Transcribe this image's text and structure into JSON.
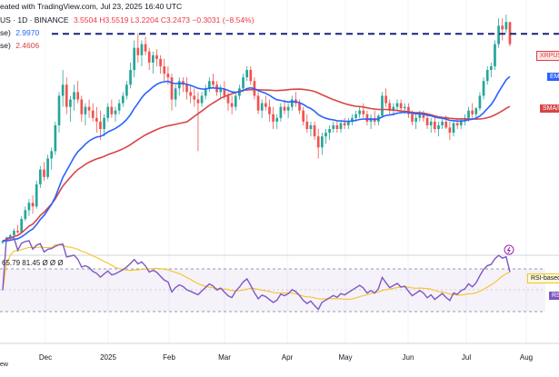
{
  "header": {
    "line1": "eated with TradingView.com, Jul 23, 2025 16:40 UTC",
    "line2_prefix": "US · 1D · BINANCE",
    "ohlc": "3.5504  H3.5519  L3.2204  C3.2473  −0.3031 (−8.54%)",
    "line3_prefix": "se)",
    "ema_value": "2.9970",
    "line4_prefix": "se)",
    "sma_value": "2.4606"
  },
  "price_tags": {
    "symbol": "XRPUSDT",
    "ema": "EMA",
    "sma": "SMA/MA"
  },
  "rsi": {
    "values_text": "65.79  81.45  Ø  Ø  Ø",
    "ma_label": "RSI-based M",
    "rsi_tag": "RS"
  },
  "x_axis": {
    "labels": [
      "Dec",
      "2025",
      "Feb",
      "Mar",
      "Apr",
      "May",
      "Jun",
      "Jul",
      "Aug"
    ],
    "footer": "ew"
  },
  "colors": {
    "up": "#26a69a",
    "down": "#ef5350",
    "ema": "#2962ff",
    "sma": "#d84545",
    "rsi": "#7e57c2",
    "resistance": "#1a237e"
  },
  "chart_data": {
    "type": "candlestick",
    "symbol": "XRPUSDT",
    "timeframe": "1D",
    "exchange": "BINANCE",
    "resistance_line": 3.39,
    "candles": [
      [
        0.56,
        0.6,
        0.54,
        0.58
      ],
      [
        0.58,
        0.64,
        0.56,
        0.62
      ],
      [
        0.62,
        0.68,
        0.6,
        0.66
      ],
      [
        0.66,
        0.75,
        0.64,
        0.72
      ],
      [
        0.72,
        0.8,
        0.68,
        0.7
      ],
      [
        0.7,
        0.92,
        0.68,
        0.88
      ],
      [
        0.88,
        1.05,
        0.85,
        1.0
      ],
      [
        1.0,
        1.15,
        0.92,
        1.1
      ],
      [
        1.1,
        1.2,
        0.95,
        1.05
      ],
      [
        1.05,
        1.4,
        1.02,
        1.35
      ],
      [
        1.35,
        1.6,
        1.3,
        1.55
      ],
      [
        1.55,
        1.65,
        1.4,
        1.45
      ],
      [
        1.45,
        1.75,
        1.42,
        1.7
      ],
      [
        1.7,
        1.85,
        1.55,
        1.8
      ],
      [
        1.8,
        2.2,
        1.75,
        2.15
      ],
      [
        2.15,
        2.6,
        2.05,
        2.55
      ],
      [
        2.55,
        2.9,
        2.4,
        2.7
      ],
      [
        2.7,
        2.8,
        2.3,
        2.4
      ],
      [
        2.4,
        2.55,
        2.2,
        2.5
      ],
      [
        2.5,
        2.7,
        2.35,
        2.6
      ],
      [
        2.6,
        2.75,
        2.45,
        2.5
      ],
      [
        2.5,
        2.55,
        2.2,
        2.3
      ],
      [
        2.3,
        2.45,
        2.15,
        2.4
      ],
      [
        2.4,
        2.5,
        2.25,
        2.35
      ],
      [
        2.35,
        2.45,
        2.2,
        2.25
      ],
      [
        2.25,
        2.4,
        2.05,
        2.2
      ],
      [
        2.2,
        2.35,
        1.95,
        2.1
      ],
      [
        2.1,
        2.3,
        2.0,
        2.25
      ],
      [
        2.25,
        2.45,
        2.2,
        2.4
      ],
      [
        2.4,
        2.5,
        2.25,
        2.3
      ],
      [
        2.3,
        2.4,
        2.2,
        2.35
      ],
      [
        2.35,
        2.5,
        2.3,
        2.45
      ],
      [
        2.45,
        2.6,
        2.4,
        2.55
      ],
      [
        2.55,
        2.75,
        2.5,
        2.7
      ],
      [
        2.7,
        3.0,
        2.65,
        2.9
      ],
      [
        2.9,
        3.3,
        2.8,
        3.2
      ],
      [
        3.2,
        3.4,
        3.0,
        3.1
      ],
      [
        3.1,
        3.3,
        2.95,
        3.25
      ],
      [
        3.25,
        3.35,
        3.1,
        3.15
      ],
      [
        3.15,
        3.2,
        2.9,
        3.0
      ],
      [
        3.0,
        3.15,
        2.85,
        3.1
      ],
      [
        3.1,
        3.18,
        2.95,
        3.05
      ],
      [
        3.05,
        3.1,
        2.85,
        2.95
      ],
      [
        2.95,
        3.05,
        2.75,
        2.85
      ],
      [
        2.85,
        2.95,
        2.7,
        2.8
      ],
      [
        2.8,
        2.85,
        2.35,
        2.5
      ],
      [
        2.5,
        2.7,
        2.4,
        2.65
      ],
      [
        2.65,
        2.8,
        2.55,
        2.75
      ],
      [
        2.75,
        2.8,
        2.6,
        2.7
      ],
      [
        2.7,
        2.8,
        2.5,
        2.6
      ],
      [
        2.6,
        2.7,
        2.45,
        2.55
      ],
      [
        2.55,
        2.65,
        2.4,
        2.5
      ],
      [
        2.5,
        2.6,
        1.8,
        2.45
      ],
      [
        2.45,
        2.6,
        2.4,
        2.55
      ],
      [
        2.55,
        2.7,
        2.5,
        2.65
      ],
      [
        2.65,
        2.8,
        2.6,
        2.75
      ],
      [
        2.75,
        2.85,
        2.65,
        2.7
      ],
      [
        2.7,
        2.75,
        2.55,
        2.6
      ],
      [
        2.6,
        2.7,
        2.5,
        2.65
      ],
      [
        2.65,
        2.75,
        2.5,
        2.55
      ],
      [
        2.55,
        2.6,
        2.35,
        2.45
      ],
      [
        2.45,
        2.55,
        2.3,
        2.4
      ],
      [
        2.4,
        2.6,
        2.35,
        2.55
      ],
      [
        2.55,
        2.7,
        2.5,
        2.65
      ],
      [
        2.65,
        2.85,
        2.6,
        2.8
      ],
      [
        2.8,
        2.95,
        2.75,
        2.9
      ],
      [
        2.9,
        2.95,
        2.7,
        2.75
      ],
      [
        2.75,
        2.8,
        2.5,
        2.55
      ],
      [
        2.55,
        2.6,
        2.3,
        2.35
      ],
      [
        2.35,
        2.5,
        2.25,
        2.45
      ],
      [
        2.45,
        2.55,
        2.35,
        2.4
      ],
      [
        2.4,
        2.5,
        2.2,
        2.3
      ],
      [
        2.3,
        2.4,
        2.1,
        2.2
      ],
      [
        2.2,
        2.3,
        2.1,
        2.25
      ],
      [
        2.25,
        2.45,
        2.2,
        2.4
      ],
      [
        2.4,
        2.5,
        2.3,
        2.35
      ],
      [
        2.35,
        2.45,
        2.25,
        2.4
      ],
      [
        2.4,
        2.55,
        2.35,
        2.5
      ],
      [
        2.5,
        2.6,
        2.4,
        2.45
      ],
      [
        2.45,
        2.5,
        2.3,
        2.35
      ],
      [
        2.35,
        2.4,
        2.15,
        2.2
      ],
      [
        2.2,
        2.3,
        2.05,
        2.1
      ],
      [
        2.1,
        2.2,
        2.0,
        2.15
      ],
      [
        2.15,
        2.2,
        1.95,
        2.0
      ],
      [
        2.0,
        2.1,
        1.7,
        1.85
      ],
      [
        1.85,
        2.05,
        1.75,
        2.0
      ],
      [
        2.0,
        2.1,
        1.9,
        2.05
      ],
      [
        2.05,
        2.15,
        1.95,
        2.1
      ],
      [
        2.1,
        2.2,
        2.05,
        2.15
      ],
      [
        2.15,
        2.2,
        2.05,
        2.1
      ],
      [
        2.1,
        2.2,
        2.05,
        2.18
      ],
      [
        2.18,
        2.25,
        2.1,
        2.15
      ],
      [
        2.15,
        2.25,
        2.1,
        2.2
      ],
      [
        2.2,
        2.3,
        2.15,
        2.25
      ],
      [
        2.25,
        2.35,
        2.2,
        2.3
      ],
      [
        2.3,
        2.4,
        2.25,
        2.35
      ],
      [
        2.35,
        2.45,
        2.25,
        2.3
      ],
      [
        2.3,
        2.35,
        2.15,
        2.2
      ],
      [
        2.2,
        2.3,
        2.1,
        2.25
      ],
      [
        2.25,
        2.35,
        2.15,
        2.2
      ],
      [
        2.2,
        2.3,
        2.15,
        2.28
      ],
      [
        2.28,
        2.6,
        2.25,
        2.55
      ],
      [
        2.55,
        2.65,
        2.4,
        2.45
      ],
      [
        2.45,
        2.5,
        2.3,
        2.35
      ],
      [
        2.35,
        2.45,
        2.28,
        2.4
      ],
      [
        2.4,
        2.5,
        2.35,
        2.45
      ],
      [
        2.45,
        2.5,
        2.35,
        2.38
      ],
      [
        2.38,
        2.45,
        2.3,
        2.4
      ],
      [
        2.4,
        2.45,
        2.25,
        2.3
      ],
      [
        2.3,
        2.35,
        2.15,
        2.2
      ],
      [
        2.2,
        2.3,
        2.1,
        2.25
      ],
      [
        2.25,
        2.35,
        2.2,
        2.3
      ],
      [
        2.3,
        2.35,
        2.2,
        2.25
      ],
      [
        2.25,
        2.3,
        2.1,
        2.15
      ],
      [
        2.15,
        2.25,
        2.05,
        2.2
      ],
      [
        2.2,
        2.25,
        2.05,
        2.1
      ],
      [
        2.1,
        2.2,
        2.0,
        2.15
      ],
      [
        2.15,
        2.25,
        2.1,
        2.2
      ],
      [
        2.2,
        2.28,
        2.1,
        2.12
      ],
      [
        2.12,
        2.2,
        1.95,
        2.05
      ],
      [
        2.05,
        2.2,
        2.0,
        2.18
      ],
      [
        2.18,
        2.25,
        2.1,
        2.15
      ],
      [
        2.15,
        2.25,
        2.1,
        2.22
      ],
      [
        2.22,
        2.3,
        2.15,
        2.25
      ],
      [
        2.25,
        2.4,
        2.2,
        2.35
      ],
      [
        2.35,
        2.45,
        2.25,
        2.3
      ],
      [
        2.3,
        2.4,
        2.25,
        2.38
      ],
      [
        2.38,
        2.6,
        2.35,
        2.55
      ],
      [
        2.55,
        2.8,
        2.5,
        2.75
      ],
      [
        2.75,
        2.95,
        2.7,
        2.9
      ],
      [
        2.9,
        3.0,
        2.8,
        2.95
      ],
      [
        2.95,
        3.3,
        2.9,
        3.25
      ],
      [
        3.25,
        3.6,
        3.2,
        3.5
      ],
      [
        3.5,
        3.6,
        3.3,
        3.45
      ],
      [
        3.45,
        3.65,
        3.4,
        3.55
      ],
      [
        3.55,
        3.55,
        3.22,
        3.25
      ]
    ],
    "x_start": "2024-11-08",
    "x_interval_days": 1.9,
    "ema_period": 20,
    "sma_period": 50,
    "rsi_panel": {
      "upper": 70,
      "lower": 30,
      "last_rsi": 65.79,
      "last_ma": 81.45
    },
    "ylim": [
      0.45,
      3.75
    ]
  }
}
